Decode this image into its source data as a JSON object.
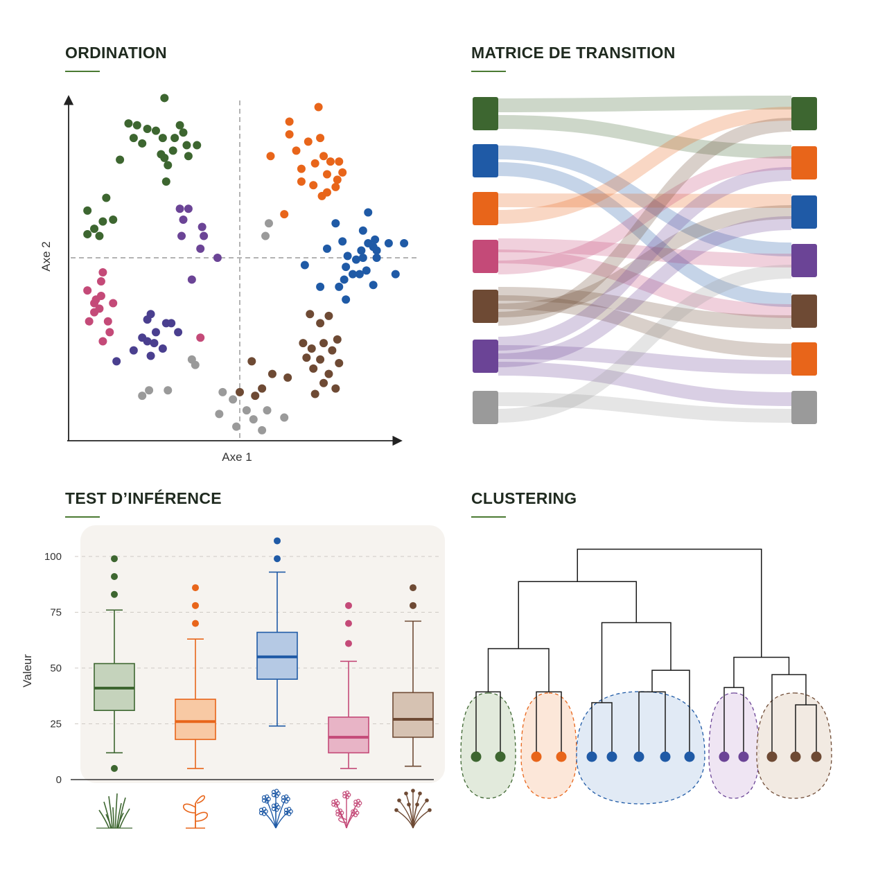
{
  "colors": {
    "green": "#3d6630",
    "orange": "#e8651a",
    "blue": "#1f5aa6",
    "purple": "#6b4496",
    "pink": "#c44a78",
    "brown": "#6e4a34",
    "gray": "#9a9a9a",
    "indigo": "#4a3f8f",
    "title_rule": "#4a7a32"
  },
  "ordination": {
    "title": "ORDINATION",
    "xlabel": "Axe 1",
    "ylabel": "Axe 2"
  },
  "transition": {
    "title": "MATRICE DE TRANSITION"
  },
  "inference": {
    "title": "TEST D’INFÉRENCE",
    "ylabel": "Valeur",
    "icons": [
      "grass-icon",
      "sprout-icon",
      "blue-flowers-icon",
      "pink-flower-icon",
      "shrub-icon"
    ]
  },
  "clustering": {
    "title": "CLUSTERING"
  },
  "chart_data": [
    {
      "type": "scatter",
      "xlabel": "Axe 1",
      "ylabel": "Axe 2",
      "grid": false,
      "reference_lines": {
        "x": 0,
        "y": 0
      },
      "xlim": [
        -10,
        10
      ],
      "ylim": [
        -10,
        10
      ],
      "series": [
        {
          "color": "green",
          "points": [
            [
              -4.4,
              8.8
            ],
            [
              -6.5,
              7.4
            ],
            [
              -6.0,
              7.3
            ],
            [
              -5.4,
              7.1
            ],
            [
              -4.9,
              7.0
            ],
            [
              -3.5,
              7.3
            ],
            [
              -3.3,
              6.9
            ],
            [
              -6.2,
              6.6
            ],
            [
              -5.7,
              6.3
            ],
            [
              -4.5,
              6.6
            ],
            [
              -3.8,
              6.6
            ],
            [
              -3.1,
              6.2
            ],
            [
              -2.5,
              6.2
            ],
            [
              -3.0,
              5.6
            ],
            [
              -4.4,
              5.5
            ],
            [
              -3.9,
              5.9
            ],
            [
              -4.6,
              5.7
            ],
            [
              -7.0,
              5.4
            ],
            [
              -4.2,
              5.1
            ],
            [
              -4.3,
              4.2
            ]
          ]
        },
        {
          "color": "green",
          "points": [
            [
              -7.8,
              3.3
            ],
            [
              -8.9,
              2.6
            ],
            [
              -7.4,
              2.1
            ],
            [
              -8.0,
              2.0
            ],
            [
              -8.5,
              1.6
            ],
            [
              -8.9,
              1.3
            ],
            [
              -8.2,
              1.2
            ]
          ]
        },
        {
          "color": "orange",
          "points": [
            [
              4.6,
              8.3
            ],
            [
              2.9,
              7.5
            ],
            [
              2.9,
              6.8
            ],
            [
              4.0,
              6.4
            ],
            [
              4.7,
              6.6
            ],
            [
              3.3,
              5.9
            ],
            [
              4.9,
              5.6
            ],
            [
              1.8,
              5.6
            ],
            [
              4.4,
              5.2
            ],
            [
              5.3,
              5.3
            ],
            [
              5.8,
              5.3
            ],
            [
              3.6,
              4.9
            ],
            [
              5.1,
              4.6
            ],
            [
              6.0,
              4.7
            ],
            [
              3.6,
              4.2
            ],
            [
              4.3,
              4.0
            ],
            [
              5.7,
              4.3
            ],
            [
              5.6,
              3.9
            ],
            [
              5.1,
              3.6
            ],
            [
              4.8,
              3.4
            ]
          ]
        },
        {
          "color": "orange",
          "points": [
            [
              2.6,
              2.4
            ]
          ]
        },
        {
          "color": "gray",
          "points": [
            [
              1.7,
              1.9
            ],
            [
              1.5,
              1.2
            ]
          ]
        },
        {
          "color": "purple",
          "points": [
            [
              -3.5,
              2.7
            ],
            [
              -3.0,
              2.7
            ],
            [
              -3.3,
              2.1
            ],
            [
              -2.2,
              1.7
            ],
            [
              -3.4,
              1.2
            ],
            [
              -2.1,
              1.2
            ],
            [
              -2.3,
              0.5
            ],
            [
              -1.3,
              0.0
            ],
            [
              -2.8,
              -1.2
            ]
          ]
        },
        {
          "color": "blue",
          "points": [
            [
              7.5,
              2.5
            ],
            [
              5.6,
              1.9
            ],
            [
              7.2,
              1.5
            ],
            [
              7.9,
              1.0
            ],
            [
              6.0,
              0.9
            ],
            [
              7.5,
              0.8
            ],
            [
              8.7,
              0.8
            ],
            [
              9.6,
              0.8
            ],
            [
              7.8,
              0.6
            ],
            [
              8.0,
              0.4
            ],
            [
              7.1,
              0.4
            ],
            [
              6.3,
              0.1
            ],
            [
              5.1,
              0.5
            ],
            [
              6.8,
              -0.1
            ],
            [
              7.2,
              0.0
            ],
            [
              6.2,
              -0.5
            ],
            [
              7.4,
              -0.7
            ],
            [
              6.6,
              -0.9
            ],
            [
              7.0,
              -0.9
            ],
            [
              9.1,
              -0.9
            ],
            [
              6.1,
              -1.2
            ],
            [
              5.8,
              -1.6
            ],
            [
              4.7,
              -1.6
            ],
            [
              3.8,
              -0.4
            ],
            [
              7.8,
              -1.5
            ],
            [
              8.0,
              0.0
            ],
            [
              6.2,
              -2.3
            ]
          ]
        },
        {
          "color": "pink",
          "points": [
            [
              -8.0,
              -0.8
            ],
            [
              -8.1,
              -1.3
            ],
            [
              -8.9,
              -1.8
            ],
            [
              -8.1,
              -2.1
            ],
            [
              -8.4,
              -2.3
            ],
            [
              -7.4,
              -2.5
            ],
            [
              -8.5,
              -2.5
            ],
            [
              -8.2,
              -2.8
            ],
            [
              -8.5,
              -3.0
            ],
            [
              -8.8,
              -3.5
            ],
            [
              -7.7,
              -3.5
            ],
            [
              -7.6,
              -4.1
            ],
            [
              -8.0,
              -4.6
            ],
            [
              -2.3,
              -4.4
            ]
          ]
        },
        {
          "color": "indigo",
          "points": [
            [
              -5.2,
              -3.1
            ],
            [
              -5.4,
              -3.4
            ],
            [
              -4.3,
              -3.6
            ],
            [
              -4.0,
              -3.6
            ],
            [
              -4.9,
              -4.1
            ],
            [
              -5.7,
              -4.4
            ],
            [
              -3.6,
              -4.1
            ],
            [
              -5.0,
              -4.7
            ],
            [
              -5.4,
              -4.6
            ],
            [
              -6.2,
              -5.1
            ],
            [
              -4.5,
              -5.0
            ],
            [
              -5.2,
              -5.4
            ],
            [
              -7.2,
              -5.7
            ]
          ]
        },
        {
          "color": "brown",
          "points": [
            [
              4.1,
              -3.1
            ],
            [
              5.2,
              -3.2
            ],
            [
              4.7,
              -3.6
            ],
            [
              5.7,
              -4.5
            ],
            [
              3.7,
              -4.7
            ],
            [
              4.9,
              -4.7
            ],
            [
              4.2,
              -5.0
            ],
            [
              5.4,
              -5.1
            ],
            [
              3.9,
              -5.5
            ],
            [
              4.7,
              -5.6
            ],
            [
              5.8,
              -5.8
            ],
            [
              4.3,
              -6.1
            ],
            [
              5.2,
              -6.4
            ],
            [
              4.9,
              -6.9
            ],
            [
              5.6,
              -7.2
            ],
            [
              4.4,
              -7.5
            ]
          ]
        },
        {
          "color": "brown",
          "points": [
            [
              0.7,
              -5.7
            ],
            [
              1.9,
              -6.4
            ],
            [
              2.8,
              -6.6
            ],
            [
              0.0,
              -7.4
            ],
            [
              1.3,
              -7.2
            ],
            [
              0.9,
              -7.6
            ]
          ]
        },
        {
          "color": "gray",
          "points": [
            [
              -2.8,
              -5.6
            ],
            [
              -2.6,
              -5.9
            ],
            [
              -5.3,
              -7.3
            ],
            [
              -5.7,
              -7.6
            ],
            [
              -4.2,
              -7.3
            ],
            [
              -1.0,
              -7.4
            ],
            [
              -0.4,
              -7.8
            ],
            [
              0.4,
              -8.4
            ],
            [
              -1.2,
              -8.6
            ],
            [
              1.6,
              -8.4
            ],
            [
              0.8,
              -8.9
            ],
            [
              2.6,
              -8.8
            ],
            [
              -0.2,
              -9.3
            ],
            [
              1.3,
              -9.5
            ]
          ]
        }
      ]
    },
    {
      "type": "sankey",
      "left_nodes": [
        "green",
        "blue",
        "orange",
        "pink",
        "brown",
        "purple",
        "gray"
      ],
      "right_nodes": [
        "green",
        "orange",
        "blue",
        "purple",
        "brown",
        "orange",
        "gray"
      ],
      "links": [
        {
          "from": 0,
          "to": 0
        },
        {
          "from": 0,
          "to": 1
        },
        {
          "from": 1,
          "to": 3
        },
        {
          "from": 1,
          "to": 4
        },
        {
          "from": 2,
          "to": 2
        },
        {
          "from": 2,
          "to": 0
        },
        {
          "from": 3,
          "to": 3
        },
        {
          "from": 3,
          "to": 4
        },
        {
          "from": 3,
          "to": 1
        },
        {
          "from": 4,
          "to": 4
        },
        {
          "from": 4,
          "to": 5
        },
        {
          "from": 4,
          "to": 2
        },
        {
          "from": 4,
          "to": 0
        },
        {
          "from": 5,
          "to": 1
        },
        {
          "from": 5,
          "to": 5
        },
        {
          "from": 5,
          "to": 2
        },
        {
          "from": 5,
          "to": 6
        },
        {
          "from": 6,
          "to": 6
        },
        {
          "from": 6,
          "to": 3
        }
      ]
    },
    {
      "type": "box",
      "ylabel": "Valeur",
      "yticks": [
        0,
        25,
        50,
        75,
        100
      ],
      "ylim": [
        0,
        110
      ],
      "series": [
        {
          "color": "green",
          "fill": "#c5d3bc",
          "whisker_low": 12,
          "q1": 31,
          "median": 41,
          "q3": 52,
          "whisker_high": 76,
          "outliers": [
            99,
            91,
            83,
            5
          ]
        },
        {
          "color": "orange",
          "fill": "#f8c9a4",
          "whisker_low": 5,
          "q1": 18,
          "median": 26,
          "q3": 36,
          "whisker_high": 63,
          "outliers": [
            86,
            78,
            70
          ]
        },
        {
          "color": "blue",
          "fill": "#b5c9e4",
          "whisker_low": 24,
          "q1": 45,
          "median": 55,
          "q3": 66,
          "whisker_high": 93,
          "outliers": [
            107,
            99
          ]
        },
        {
          "color": "pink",
          "fill": "#e8b4c6",
          "whisker_low": 5,
          "q1": 12,
          "median": 19,
          "q3": 28,
          "whisker_high": 53,
          "outliers": [
            78,
            70,
            61
          ]
        },
        {
          "color": "brown",
          "fill": "#d6c2b2",
          "whisker_low": 6,
          "q1": 19,
          "median": 27,
          "q3": 39,
          "whisker_high": 71,
          "outliers": [
            86,
            78
          ]
        }
      ]
    },
    {
      "type": "dendrogram",
      "leaves": [
        "green",
        "green",
        "orange",
        "orange",
        "blue",
        "blue",
        "blue",
        "blue",
        "blue",
        "purple",
        "purple",
        "brown",
        "brown",
        "brown"
      ],
      "merges": [
        {
          "a": 0,
          "b": 1,
          "h": 0.3
        },
        {
          "a": 2,
          "b": 3,
          "h": 0.3
        },
        {
          "a": 14,
          "b": 15,
          "h": 0.5
        },
        {
          "a": 4,
          "b": 5,
          "h": 0.25
        },
        {
          "a": 6,
          "b": 7,
          "h": 0.3
        },
        {
          "a": 18,
          "b": 8,
          "h": 0.4
        },
        {
          "a": 17,
          "b": 19,
          "h": 0.62
        },
        {
          "a": 16,
          "b": 20,
          "h": 0.81
        },
        {
          "a": 12,
          "b": 13,
          "h": 0.24
        },
        {
          "a": 11,
          "b": 22,
          "h": 0.38
        },
        {
          "a": 9,
          "b": 10,
          "h": 0.32
        },
        {
          "a": 24,
          "b": 23,
          "h": 0.46
        },
        {
          "a": 21,
          "b": 25,
          "h": 0.96
        }
      ],
      "clusters": [
        {
          "color": "green",
          "fill": "#dde6d6",
          "leaves": [
            0,
            1
          ]
        },
        {
          "color": "orange",
          "fill": "#fbe3d2",
          "leaves": [
            2,
            3
          ]
        },
        {
          "color": "blue",
          "fill": "#dce6f3",
          "leaves": [
            4,
            5,
            6,
            7,
            8
          ]
        },
        {
          "color": "purple",
          "fill": "#ece0f1",
          "leaves": [
            9,
            10
          ]
        },
        {
          "color": "brown",
          "fill": "#f0e6dd",
          "leaves": [
            11,
            12,
            13
          ]
        }
      ]
    }
  ]
}
